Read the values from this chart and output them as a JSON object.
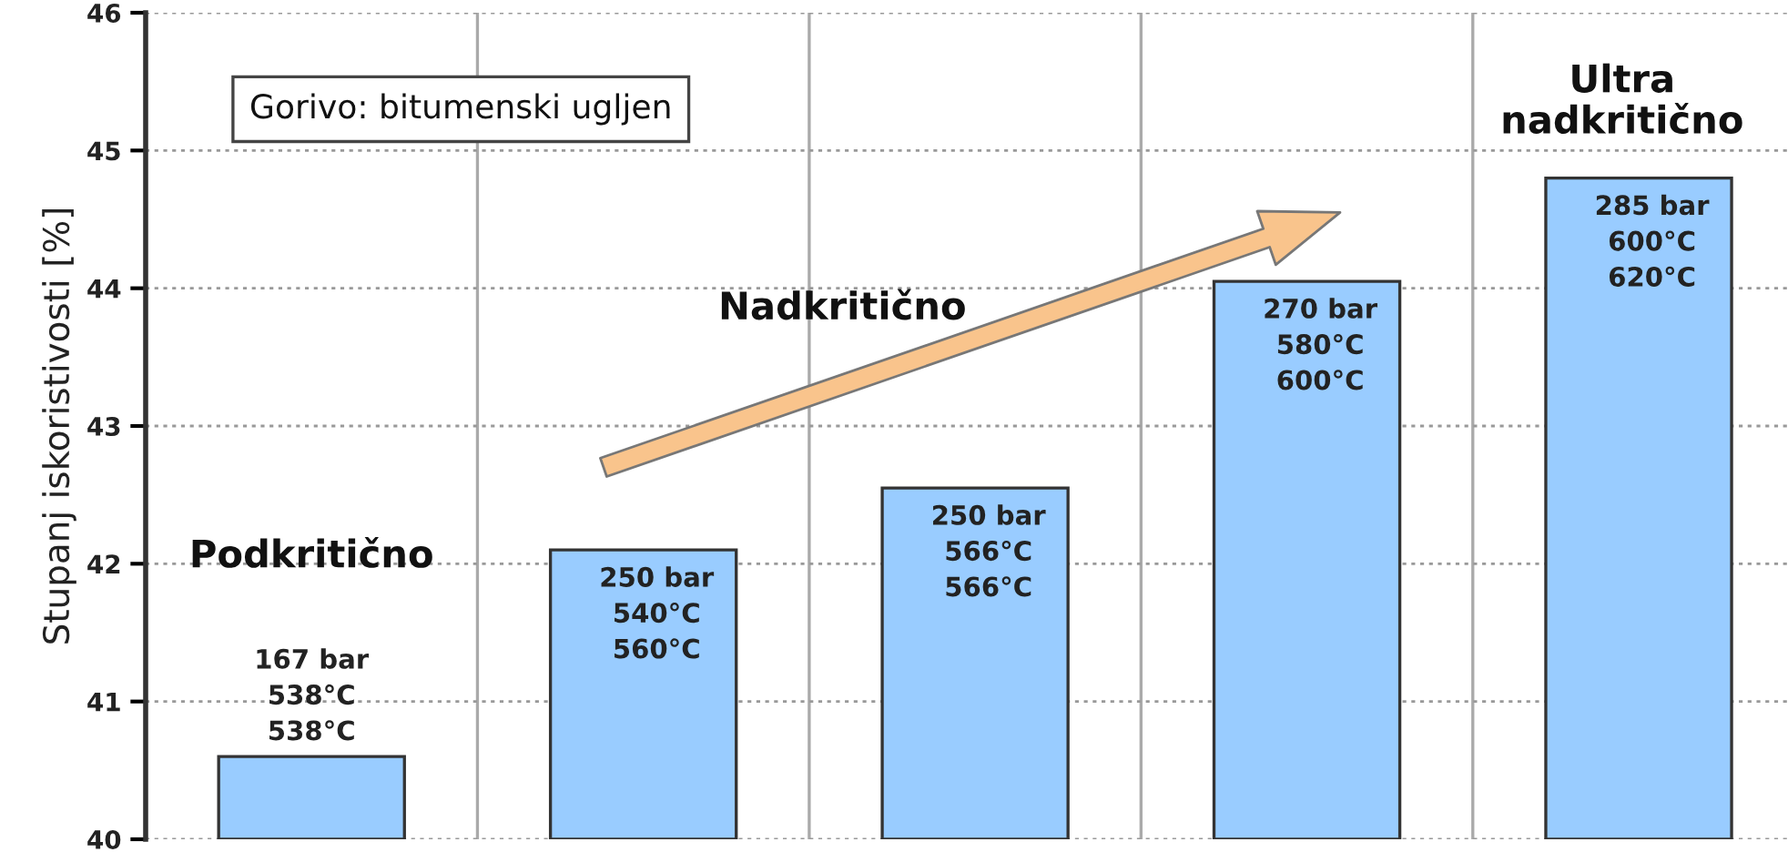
{
  "chart_data": {
    "type": "bar",
    "categories": [
      null,
      null,
      null,
      null,
      null
    ],
    "values": [
      40.6,
      42.1,
      42.55,
      44.05,
      44.8
    ],
    "color": "#99ccff",
    "ylabel": "Stupanj iskoristivosti [%]",
    "ylim": [
      40,
      46
    ],
    "yticks": [
      40,
      41,
      42,
      43,
      44,
      45,
      46
    ],
    "grid": true,
    "annotations": [
      "Gorivo: bitumenski ugljen",
      "Podkritično",
      "Nadkritično",
      "Ultra\nnadkritično",
      "167 bar\n538°C\n538°C",
      "250 bar\n540°C\n560°C",
      "250 bar\n566°C\n566°C",
      "270 bar\n580°C\n600°C",
      "285 bar\n600°C\n620°C"
    ]
  }
}
